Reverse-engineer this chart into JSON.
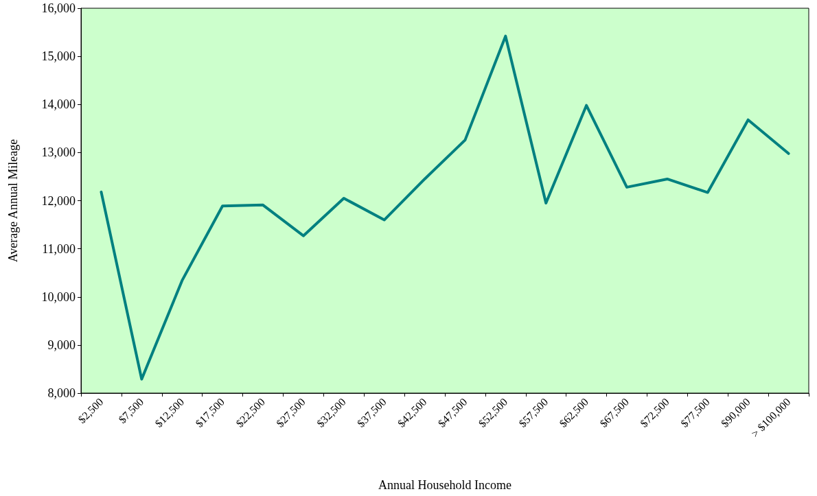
{
  "chart_data": {
    "type": "line",
    "xlabel": "Annual Household Income",
    "ylabel": "Average Annual Mileage",
    "categories": [
      "$2,500",
      "$7,500",
      "$12,500",
      "$17,500",
      "$22,500",
      "$27,500",
      "$32,500",
      "$37,500",
      "$42,500",
      "$47,500",
      "$52,500",
      "$57,500",
      "$62,500",
      "$67,500",
      "$72,500",
      "$77,500",
      "$90,000",
      "> $100,000"
    ],
    "series": [
      {
        "color": "#008080",
        "values": [
          12180,
          8290,
          10340,
          11890,
          11910,
          11270,
          12050,
          11600,
          12450,
          13260,
          15420,
          11950,
          13980,
          12280,
          12450,
          12170,
          13680,
          12980
        ]
      }
    ],
    "ylim": [
      8000,
      16000
    ],
    "yticks": [
      {
        "value": 8000,
        "label": "8,000"
      },
      {
        "value": 9000,
        "label": "9,000"
      },
      {
        "value": 10000,
        "label": "10,000"
      },
      {
        "value": 11000,
        "label": "11,000"
      },
      {
        "value": 12000,
        "label": "12,000"
      },
      {
        "value": 13000,
        "label": "13,000"
      },
      {
        "value": 14000,
        "label": "14,000"
      },
      {
        "value": 15000,
        "label": "15,000"
      },
      {
        "value": 16000,
        "label": "16,000"
      }
    ],
    "grid": false,
    "marker": "none",
    "line_style": "solid"
  }
}
